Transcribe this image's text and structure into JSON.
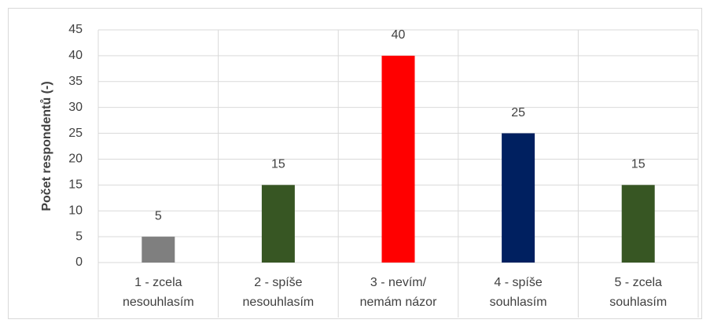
{
  "chart_data": {
    "type": "bar",
    "y_label": "Počet respondentů (-)",
    "categories": [
      [
        "1 - zcela",
        "nesouhlasím"
      ],
      [
        "2 - spíše",
        "nesouhlasím"
      ],
      [
        "3 - nevím/",
        "nemám názor"
      ],
      [
        "4 - spíše",
        "souhlasím"
      ],
      [
        "5 - zcela",
        "souhlasím"
      ]
    ],
    "values": [
      5,
      15,
      40,
      25,
      15
    ],
    "colors": [
      "#7f7f7f",
      "#375623",
      "#ff0000",
      "#002060",
      "#375623"
    ],
    "ylim": [
      0,
      45
    ],
    "yticks": [
      0,
      5,
      10,
      15,
      20,
      25,
      30,
      35,
      40,
      45
    ],
    "grid": true
  }
}
